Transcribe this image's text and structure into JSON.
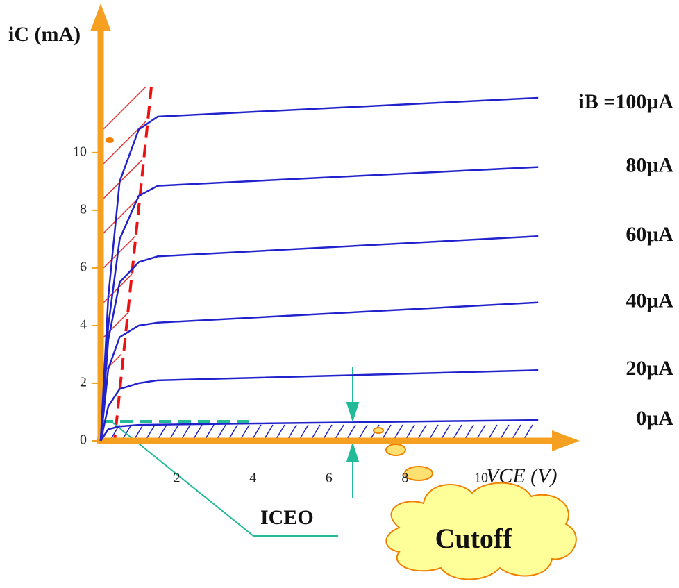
{
  "chart_data": {
    "type": "line",
    "y_label": "iC (mA)",
    "x_label": "VCE (V)",
    "x": [
      0,
      0.2,
      0.5,
      1,
      1.5,
      11.5
    ],
    "series": [
      {
        "name": "iB =100μA",
        "color": "#2222cc",
        "values": [
          0,
          5,
          9,
          10.8,
          11.25,
          11.9
        ]
      },
      {
        "name": "80μA",
        "color": "#2222cc",
        "values": [
          0,
          4,
          7,
          8.5,
          8.85,
          9.5
        ]
      },
      {
        "name": "60μA",
        "color": "#2222cc",
        "values": [
          0,
          3.5,
          5.5,
          6.2,
          6.4,
          7.1
        ]
      },
      {
        "name": "40μA",
        "color": "#2222cc",
        "values": [
          0,
          2.5,
          3.6,
          4.0,
          4.1,
          4.8
        ]
      },
      {
        "name": "20μA",
        "color": "#2222cc",
        "values": [
          0,
          1.2,
          1.8,
          2.0,
          2.1,
          2.45
        ]
      },
      {
        "name": "0μA",
        "color": "#2222cc",
        "values": [
          0,
          0.4,
          0.5,
          0.55,
          0.56,
          0.72
        ]
      }
    ],
    "xlim": [
      0,
      12.5
    ],
    "ylim": [
      0,
      14.5
    ],
    "xticks": [
      2,
      4,
      6,
      8,
      10
    ],
    "yticks": [
      0,
      2,
      4,
      6,
      8,
      10
    ],
    "grid": false,
    "annotations": [
      "ICEO",
      "Cutoff"
    ]
  }
}
